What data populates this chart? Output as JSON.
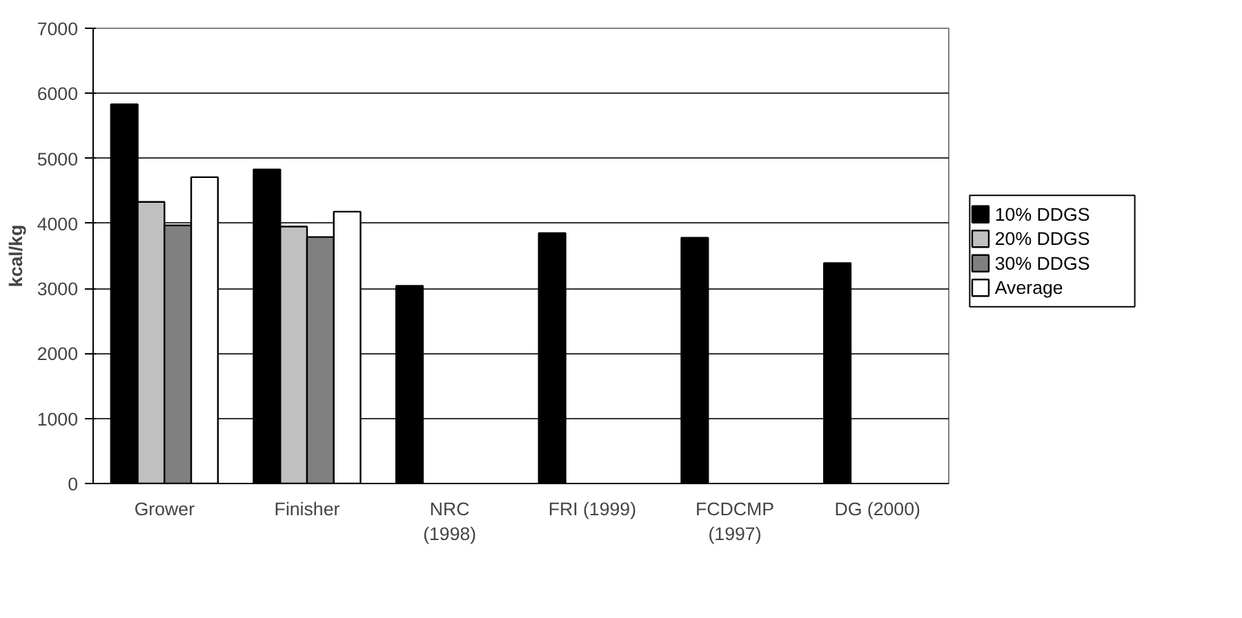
{
  "chart_data": {
    "type": "bar",
    "ylabel": "kcal/kg",
    "categories": [
      "Grower",
      "Finisher",
      "NRC\n(1998)",
      "FRI (1999)",
      "FCDCMP\n(1997)",
      "DG (2000)"
    ],
    "series": [
      {
        "name": "10% DDGS",
        "color": "#000000",
        "values": [
          5830,
          4830,
          3040,
          3850,
          3780,
          3390
        ]
      },
      {
        "name": "20% DDGS",
        "color": "#c0c0c0",
        "values": [
          4330,
          3950,
          null,
          null,
          null,
          null
        ]
      },
      {
        "name": "30% DDGS",
        "color": "#808080",
        "values": [
          3970,
          3790,
          null,
          null,
          null,
          null
        ]
      },
      {
        "name": "Average",
        "color": "#ffffff",
        "values": [
          4710,
          4180,
          null,
          null,
          null,
          null
        ]
      }
    ],
    "ylim": [
      0,
      7000
    ],
    "yticks": [
      0,
      1000,
      2000,
      3000,
      4000,
      5000,
      6000,
      7000
    ],
    "grid": "y",
    "legend": "right"
  }
}
